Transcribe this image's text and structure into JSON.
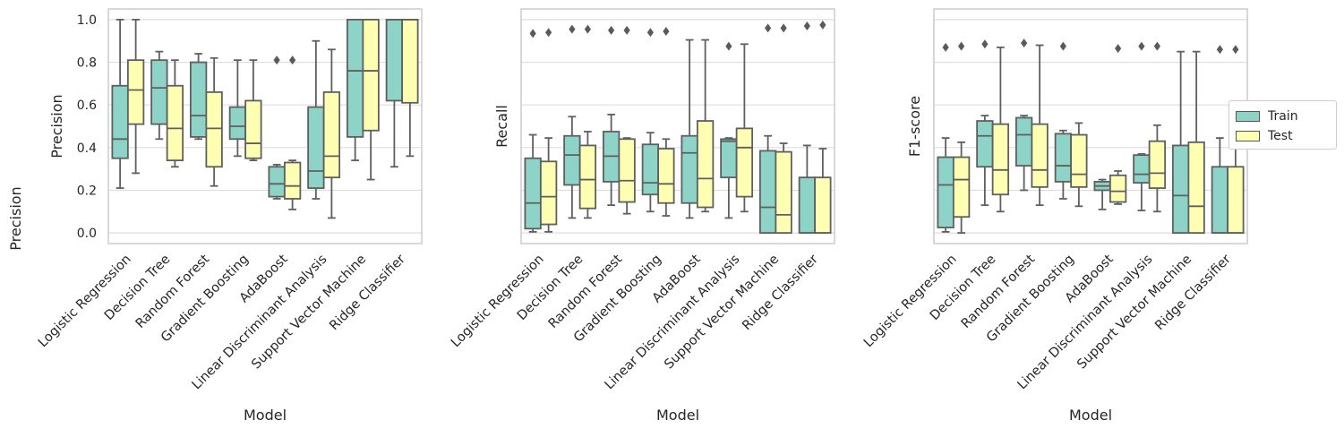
{
  "figure_ylabel": "Precision",
  "colors": {
    "train": "#8dd3c7",
    "test": "#ffffb3",
    "edge": "#555555",
    "grid": "#dddddd",
    "spine": "#cccccc"
  },
  "legend": {
    "items": [
      {
        "label": "Train",
        "key": "train"
      },
      {
        "label": "Test",
        "key": "test"
      }
    ]
  },
  "chart_data": [
    {
      "type": "box",
      "xlabel": "Model",
      "ylabel": "Precision",
      "ylim": [
        -0.05,
        1.05
      ],
      "yticks": [
        "0.0",
        "0.2",
        "0.4",
        "0.6",
        "0.8",
        "1.0"
      ],
      "show_ytick_labels": true,
      "categories": [
        "Logistic Regression",
        "Decision Tree",
        "Random Forest",
        "Gradient Boosting",
        "AdaBoost",
        "Linear Discriminant Analysis",
        "Support Vector Machine",
        "Ridge Classifier"
      ],
      "series": [
        {
          "name": "Train",
          "boxes": [
            {
              "whislo": 0.21,
              "q1": 0.35,
              "med": 0.44,
              "q3": 0.69,
              "whishi": 1.0,
              "fliers": []
            },
            {
              "whislo": 0.44,
              "q1": 0.51,
              "med": 0.68,
              "q3": 0.81,
              "whishi": 0.85,
              "fliers": []
            },
            {
              "whislo": 0.44,
              "q1": 0.45,
              "med": 0.55,
              "q3": 0.8,
              "whishi": 0.84,
              "fliers": []
            },
            {
              "whislo": 0.36,
              "q1": 0.44,
              "med": 0.5,
              "q3": 0.59,
              "whishi": 0.81,
              "fliers": []
            },
            {
              "whislo": 0.16,
              "q1": 0.17,
              "med": 0.23,
              "q3": 0.31,
              "whishi": 0.32,
              "fliers": [
                0.81
              ]
            },
            {
              "whislo": 0.16,
              "q1": 0.21,
              "med": 0.29,
              "q3": 0.59,
              "whishi": 0.9,
              "fliers": []
            },
            {
              "whislo": 0.34,
              "q1": 0.45,
              "med": 0.76,
              "q3": 1.0,
              "whishi": 1.0,
              "fliers": []
            },
            {
              "whislo": 0.31,
              "q1": 0.62,
              "med": 1.0,
              "q3": 1.0,
              "whishi": 1.0,
              "fliers": []
            }
          ]
        },
        {
          "name": "Test",
          "boxes": [
            {
              "whislo": 0.28,
              "q1": 0.51,
              "med": 0.67,
              "q3": 0.81,
              "whishi": 1.0,
              "fliers": []
            },
            {
              "whislo": 0.31,
              "q1": 0.34,
              "med": 0.49,
              "q3": 0.69,
              "whishi": 0.81,
              "fliers": []
            },
            {
              "whislo": 0.22,
              "q1": 0.31,
              "med": 0.49,
              "q3": 0.66,
              "whishi": 0.82,
              "fliers": []
            },
            {
              "whislo": 0.34,
              "q1": 0.35,
              "med": 0.42,
              "q3": 0.62,
              "whishi": 0.81,
              "fliers": []
            },
            {
              "whislo": 0.11,
              "q1": 0.16,
              "med": 0.22,
              "q3": 0.33,
              "whishi": 0.34,
              "fliers": [
                0.81
              ]
            },
            {
              "whislo": 0.07,
              "q1": 0.26,
              "med": 0.36,
              "q3": 0.66,
              "whishi": 0.86,
              "fliers": []
            },
            {
              "whislo": 0.25,
              "q1": 0.48,
              "med": 0.76,
              "q3": 1.0,
              "whishi": 1.0,
              "fliers": []
            },
            {
              "whislo": 0.36,
              "q1": 0.61,
              "med": 1.0,
              "q3": 1.0,
              "whishi": 1.0,
              "fliers": []
            }
          ]
        }
      ]
    },
    {
      "type": "box",
      "xlabel": "Model",
      "ylabel": "Recall",
      "ylim": [
        -0.05,
        1.05
      ],
      "yticks": [],
      "show_ytick_labels": false,
      "categories": [
        "Logistic Regression",
        "Decision Tree",
        "Random Forest",
        "Gradient Boosting",
        "AdaBoost",
        "Linear Discriminant Analysis",
        "Support Vector Machine",
        "Ridge Classifier"
      ],
      "series": [
        {
          "name": "Train",
          "boxes": [
            {
              "whislo": 0.005,
              "q1": 0.02,
              "med": 0.14,
              "q3": 0.35,
              "whishi": 0.46,
              "fliers": [
                0.935
              ]
            },
            {
              "whislo": 0.07,
              "q1": 0.225,
              "med": 0.365,
              "q3": 0.455,
              "whishi": 0.545,
              "fliers": [
                0.955
              ]
            },
            {
              "whislo": 0.13,
              "q1": 0.24,
              "med": 0.36,
              "q3": 0.475,
              "whishi": 0.555,
              "fliers": [
                0.95
              ]
            },
            {
              "whislo": 0.1,
              "q1": 0.18,
              "med": 0.235,
              "q3": 0.415,
              "whishi": 0.47,
              "fliers": [
                0.94
              ]
            },
            {
              "whislo": 0.07,
              "q1": 0.14,
              "med": 0.375,
              "q3": 0.455,
              "whishi": 0.905,
              "fliers": []
            },
            {
              "whislo": 0.07,
              "q1": 0.26,
              "med": 0.43,
              "q3": 0.44,
              "whishi": 0.445,
              "fliers": [
                0.875
              ]
            },
            {
              "whislo": 0.0,
              "q1": 0.0,
              "med": 0.12,
              "q3": 0.385,
              "whishi": 0.455,
              "fliers": [
                0.96
              ]
            },
            {
              "whislo": 0.0,
              "q1": 0.0,
              "med": 0.0,
              "q3": 0.26,
              "whishi": 0.41,
              "fliers": [
                0.97
              ]
            }
          ]
        },
        {
          "name": "Test",
          "boxes": [
            {
              "whislo": 0.005,
              "q1": 0.04,
              "med": 0.17,
              "q3": 0.335,
              "whishi": 0.445,
              "fliers": [
                0.94
              ]
            },
            {
              "whislo": 0.07,
              "q1": 0.115,
              "med": 0.25,
              "q3": 0.41,
              "whishi": 0.475,
              "fliers": [
                0.955
              ]
            },
            {
              "whislo": 0.09,
              "q1": 0.145,
              "med": 0.245,
              "q3": 0.44,
              "whishi": 0.445,
              "fliers": [
                0.95
              ]
            },
            {
              "whislo": 0.08,
              "q1": 0.14,
              "med": 0.23,
              "q3": 0.395,
              "whishi": 0.44,
              "fliers": [
                0.945
              ]
            },
            {
              "whislo": 0.1,
              "q1": 0.12,
              "med": 0.255,
              "q3": 0.525,
              "whishi": 0.905,
              "fliers": []
            },
            {
              "whislo": 0.1,
              "q1": 0.17,
              "med": 0.4,
              "q3": 0.49,
              "whishi": 0.885,
              "fliers": []
            },
            {
              "whislo": 0.0,
              "q1": 0.0,
              "med": 0.085,
              "q3": 0.38,
              "whishi": 0.42,
              "fliers": [
                0.96
              ]
            },
            {
              "whislo": 0.0,
              "q1": 0.0,
              "med": 0.0,
              "q3": 0.26,
              "whishi": 0.395,
              "fliers": [
                0.975
              ]
            }
          ]
        }
      ]
    },
    {
      "type": "box",
      "xlabel": "Model",
      "ylabel": "F1-score",
      "ylim": [
        -0.05,
        1.05
      ],
      "yticks": [],
      "show_ytick_labels": false,
      "categories": [
        "Logistic Regression",
        "Decision Tree",
        "Random Forest",
        "Gradient Boosting",
        "AdaBoost",
        "Linear Discriminant Analysis",
        "Support Vector Machine",
        "Ridge Classifier"
      ],
      "series": [
        {
          "name": "Train",
          "boxes": [
            {
              "whislo": 0.005,
              "q1": 0.025,
              "med": 0.225,
              "q3": 0.355,
              "whishi": 0.445,
              "fliers": [
                0.87
              ]
            },
            {
              "whislo": 0.13,
              "q1": 0.31,
              "med": 0.455,
              "q3": 0.525,
              "whishi": 0.55,
              "fliers": [
                0.885
              ]
            },
            {
              "whislo": 0.2,
              "q1": 0.315,
              "med": 0.46,
              "q3": 0.54,
              "whishi": 0.55,
              "fliers": [
                0.89
              ]
            },
            {
              "whislo": 0.16,
              "q1": 0.24,
              "med": 0.315,
              "q3": 0.465,
              "whishi": 0.48,
              "fliers": [
                0.875
              ]
            },
            {
              "whislo": 0.11,
              "q1": 0.2,
              "med": 0.22,
              "q3": 0.24,
              "whishi": 0.25,
              "fliers": []
            },
            {
              "whislo": 0.105,
              "q1": 0.235,
              "med": 0.275,
              "q3": 0.365,
              "whishi": 0.37,
              "fliers": [
                0.875
              ]
            },
            {
              "whislo": 0.0,
              "q1": 0.0,
              "med": 0.175,
              "q3": 0.41,
              "whishi": 0.85,
              "fliers": []
            },
            {
              "whislo": 0.0,
              "q1": 0.0,
              "med": 0.0,
              "q3": 0.31,
              "whishi": 0.445,
              "fliers": [
                0.86
              ]
            }
          ]
        },
        {
          "name": "Test",
          "boxes": [
            {
              "whislo": 0.0,
              "q1": 0.075,
              "med": 0.25,
              "q3": 0.355,
              "whishi": 0.425,
              "fliers": [
                0.875
              ]
            },
            {
              "whislo": 0.1,
              "q1": 0.18,
              "med": 0.295,
              "q3": 0.51,
              "whishi": 0.87,
              "fliers": []
            },
            {
              "whislo": 0.13,
              "q1": 0.215,
              "med": 0.295,
              "q3": 0.51,
              "whishi": 0.88,
              "fliers": []
            },
            {
              "whislo": 0.125,
              "q1": 0.215,
              "med": 0.275,
              "q3": 0.46,
              "whishi": 0.515,
              "fliers": []
            },
            {
              "whislo": 0.135,
              "q1": 0.145,
              "med": 0.195,
              "q3": 0.27,
              "whishi": 0.29,
              "fliers": [
                0.865
              ]
            },
            {
              "whislo": 0.1,
              "q1": 0.21,
              "med": 0.28,
              "q3": 0.43,
              "whishi": 0.505,
              "fliers": [
                0.875
              ]
            },
            {
              "whislo": 0.0,
              "q1": 0.0,
              "med": 0.125,
              "q3": 0.425,
              "whishi": 0.85,
              "fliers": []
            },
            {
              "whislo": 0.0,
              "q1": 0.0,
              "med": 0.0,
              "q3": 0.31,
              "whishi": 0.42,
              "fliers": [
                0.86
              ]
            }
          ]
        }
      ]
    }
  ]
}
